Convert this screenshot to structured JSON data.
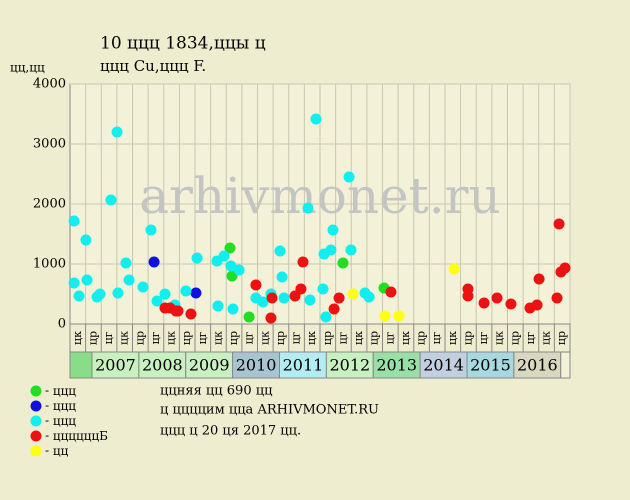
{
  "chart_data": {
    "type": "scatter",
    "title": "10 ццц 1834,ццы ц",
    "subtitle": "ццц Cu,ццц F.",
    "y_label": "цц,цц",
    "watermark": "arhivmonet.ru",
    "notes": [
      "ццняя цц 690 цц",
      "ц ццццим цца ARHIVMONET.RU",
      "ццц ц 20 ця 2017 цц."
    ],
    "ylim": [
      0,
      4000
    ],
    "yticks": [
      0,
      1000,
      2000,
      3000,
      4000
    ],
    "xlim": [
      0,
      32
    ],
    "grid": true,
    "categories": [
      "цк",
      "цр",
      "цг",
      "цк",
      "цр",
      "цг",
      "цк",
      "цр",
      "цг",
      "цк",
      "цр",
      "цг",
      "цк",
      "цр",
      "цг",
      "цк",
      "цр",
      "цг",
      "цк",
      "цр",
      "цг",
      "цк",
      "цр",
      "цг",
      "цк",
      "цр",
      "цг",
      "цк",
      "цр",
      "цг",
      "цк",
      "цр"
    ],
    "years": [
      {
        "name": "2007",
        "color": "#c8f0c0"
      },
      {
        "name": "2008",
        "color": "#c8f0c0"
      },
      {
        "name": "2009",
        "color": "#c8f0c0"
      },
      {
        "name": "2010",
        "color": "#a8c4d0"
      },
      {
        "name": "2011",
        "color": "#b4ecf4"
      },
      {
        "name": "2012",
        "color": "#c8f0c0"
      },
      {
        "name": "2013",
        "color": "#98e0a8"
      },
      {
        "name": "2014",
        "color": "#c0d0e0"
      },
      {
        "name": "2015",
        "color": "#a8d8e0"
      },
      {
        "name": "2016",
        "color": "#d8d8c0"
      }
    ],
    "series": [
      {
        "name": "ццц",
        "color": "#22dd22",
        "x": [
          10.24,
          10.37,
          11.46,
          17.47,
          20.1
        ],
        "values": [
          1267,
          800,
          117,
          1017,
          600
        ]
      },
      {
        "name": "ццц",
        "color": "#1111dd",
        "x": [
          5.38,
          8.06
        ],
        "values": [
          1033,
          517
        ]
      },
      {
        "name": "ццц",
        "color": "#11eeee",
        "x": [
          0.26,
          0.58,
          1.02,
          0.26,
          1.09,
          1.73,
          1.92,
          2.62,
          3.01,
          3.07,
          3.58,
          3.78,
          4.67,
          5.18,
          5.57,
          6.08,
          6.72,
          7.42,
          8.13,
          9.41,
          9.47,
          9.86,
          10.3,
          10.43,
          10.82,
          11.9,
          12.35,
          12.86,
          13.44,
          13.57,
          13.7,
          15.23,
          15.36,
          15.74,
          16.19,
          16.26,
          16.38,
          16.7,
          16.83,
          17.86,
          17.98,
          18.88,
          19.14
        ],
        "values": [
          1717,
          467,
          1400,
          683,
          733,
          450,
          500,
          2067,
          3200,
          517,
          1017,
          733,
          617,
          1567,
          383,
          500,
          317,
          550,
          1100,
          1050,
          300,
          1133,
          967,
          250,
          900,
          433,
          367,
          500,
          1217,
          783,
          433,
          1933,
          400,
          3417,
          583,
          1167,
          117,
          1233,
          1567,
          2450,
          1233,
          517,
          450
        ]
      },
      {
        "name": "ццццццБ",
        "color": "#ee1111",
        "x": [
          6.08,
          6.4,
          6.78,
          6.91,
          7.74,
          11.9,
          12.86,
          12.93,
          14.4,
          14.78,
          14.91,
          16.9,
          17.22,
          20.54,
          25.47,
          25.47,
          26.5,
          27.33,
          28.22,
          29.44,
          29.89,
          30.02,
          31.17,
          31.3,
          31.42,
          31.68
        ],
        "values": [
          267,
          267,
          217,
          217,
          167,
          650,
          100,
          433,
          467,
          583,
          1033,
          250,
          433,
          533,
          583,
          467,
          350,
          433,
          333,
          267,
          317,
          750,
          433,
          1667,
          867,
          933
        ]
      },
      {
        "name": "цц",
        "color": "#ffff11",
        "x": [
          18.11,
          20.16,
          21.06,
          24.58
        ],
        "values": [
          500,
          133,
          133,
          917
        ]
      }
    ]
  }
}
